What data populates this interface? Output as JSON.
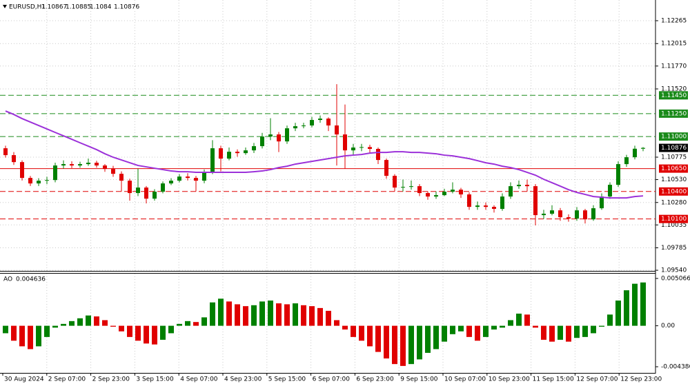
{
  "chart_data": {
    "type": "candlestick",
    "title": "EURUSD,H1",
    "candles": [
      [
        1.10872,
        1.109,
        1.1077,
        1.10797
      ],
      [
        1.10797,
        1.1083,
        1.1069,
        1.10721
      ],
      [
        1.10721,
        1.1074,
        1.1052,
        1.10548
      ],
      [
        1.10548,
        1.1057,
        1.1046,
        1.10488
      ],
      [
        1.10488,
        1.10545,
        1.1046,
        1.10518
      ],
      [
        1.10518,
        1.1056,
        1.1048,
        1.10525
      ],
      [
        1.10525,
        1.10715,
        1.105,
        1.10684
      ],
      [
        1.10684,
        1.1074,
        1.1065,
        1.10699
      ],
      [
        1.10699,
        1.1073,
        1.10655,
        1.10684
      ],
      [
        1.10684,
        1.10725,
        1.1066,
        1.10699
      ],
      [
        1.10699,
        1.1076,
        1.1068,
        1.10714
      ],
      [
        1.10714,
        1.10735,
        1.1066,
        1.10684
      ],
      [
        1.10684,
        1.107,
        1.10615,
        1.10646
      ],
      [
        1.10646,
        1.1068,
        1.1056,
        1.10593
      ],
      [
        1.10593,
        1.1062,
        1.104,
        1.10518
      ],
      [
        1.10518,
        1.1054,
        1.103,
        1.10383
      ],
      [
        1.10383,
        1.1065,
        1.1035,
        1.10443
      ],
      [
        1.10443,
        1.1046,
        1.1027,
        1.10322
      ],
      [
        1.10322,
        1.10425,
        1.103,
        1.10398
      ],
      [
        1.10398,
        1.1051,
        1.1038,
        1.10488
      ],
      [
        1.10488,
        1.10545,
        1.1047,
        1.10518
      ],
      [
        1.10518,
        1.1059,
        1.105,
        1.10563
      ],
      [
        1.10563,
        1.106,
        1.1052,
        1.10548
      ],
      [
        1.10548,
        1.1057,
        1.104,
        1.10518
      ],
      [
        1.10518,
        1.1064,
        1.1049,
        1.10608
      ],
      [
        1.10608,
        1.1096,
        1.1059,
        1.10872
      ],
      [
        1.10872,
        1.109,
        1.1062,
        1.10759
      ],
      [
        1.10759,
        1.1088,
        1.1074,
        1.10834
      ],
      [
        1.10834,
        1.1086,
        1.1078,
        1.10819
      ],
      [
        1.10819,
        1.1088,
        1.108,
        1.10849
      ],
      [
        1.10849,
        1.1093,
        1.1082,
        1.10895
      ],
      [
        1.10895,
        1.1104,
        1.1087,
        1.11
      ],
      [
        1.11,
        1.112,
        1.1096,
        1.11023
      ],
      [
        1.11023,
        1.1105,
        1.1083,
        1.10947
      ],
      [
        1.10947,
        1.1112,
        1.1092,
        1.1109
      ],
      [
        1.1109,
        1.1115,
        1.1106,
        1.11113
      ],
      [
        1.11113,
        1.1115,
        1.1109,
        1.11121
      ],
      [
        1.11121,
        1.11215,
        1.111,
        1.11181
      ],
      [
        1.11181,
        1.1123,
        1.1115,
        1.11196
      ],
      [
        1.11196,
        1.1121,
        1.1106,
        1.11121
      ],
      [
        1.11121,
        1.11572,
        1.10684,
        1.11023
      ],
      [
        1.11023,
        1.1135,
        1.1065,
        1.10849
      ],
      [
        1.10849,
        1.1092,
        1.108,
        1.1088
      ],
      [
        1.1088,
        1.1092,
        1.1084,
        1.10885
      ],
      [
        1.10885,
        1.1091,
        1.1082,
        1.10865
      ],
      [
        1.10865,
        1.1088,
        1.107,
        1.10744
      ],
      [
        1.10744,
        1.1076,
        1.1054,
        1.10571
      ],
      [
        1.10571,
        1.1059,
        1.104,
        1.10443
      ],
      [
        1.10443,
        1.1053,
        1.104,
        1.1045
      ],
      [
        1.1045,
        1.1052,
        1.1042,
        1.10458
      ],
      [
        1.10458,
        1.1048,
        1.1035,
        1.10383
      ],
      [
        1.10383,
        1.104,
        1.1031,
        1.10345
      ],
      [
        1.10345,
        1.104,
        1.1032,
        1.1036
      ],
      [
        1.1036,
        1.1043,
        1.1035,
        1.10398
      ],
      [
        1.10398,
        1.105,
        1.1038,
        1.1042
      ],
      [
        1.1042,
        1.1044,
        1.1033,
        1.10368
      ],
      [
        1.10368,
        1.1039,
        1.102,
        1.10232
      ],
      [
        1.10232,
        1.1029,
        1.102,
        1.10247
      ],
      [
        1.10247,
        1.1028,
        1.102,
        1.10232
      ],
      [
        1.10232,
        1.1025,
        1.1017,
        1.1021
      ],
      [
        1.1021,
        1.1038,
        1.1019,
        1.10345
      ],
      [
        1.10345,
        1.105,
        1.1032,
        1.10458
      ],
      [
        1.10458,
        1.1052,
        1.1043,
        1.10473
      ],
      [
        1.10473,
        1.1053,
        1.104,
        1.10458
      ],
      [
        1.10458,
        1.1048,
        1.1003,
        1.10142
      ],
      [
        1.10142,
        1.102,
        1.101,
        1.10157
      ],
      [
        1.10157,
        1.1025,
        1.1014,
        1.10194
      ],
      [
        1.10194,
        1.1022,
        1.1008,
        1.10119
      ],
      [
        1.10119,
        1.1015,
        1.1007,
        1.10104
      ],
      [
        1.10104,
        1.1023,
        1.1008,
        1.10194
      ],
      [
        1.10194,
        1.1021,
        1.1005,
        1.10096
      ],
      [
        1.10096,
        1.1025,
        1.1008,
        1.10217
      ],
      [
        1.10217,
        1.1038,
        1.102,
        1.10345
      ],
      [
        1.10345,
        1.105,
        1.1032,
        1.10473
      ],
      [
        1.10473,
        1.1073,
        1.1045,
        1.10699
      ],
      [
        1.10699,
        1.108,
        1.1067,
        1.10774
      ],
      [
        1.10774,
        1.109,
        1.1075,
        1.10867
      ],
      [
        1.10867,
        1.10885,
        1.1084,
        1.10876
      ]
    ],
    "up_color": "#008000",
    "down_color": "#e00000",
    "ma_color": "#9b30d9",
    "ma_values": [
      1.11279,
      1.11241,
      1.11196,
      1.11158,
      1.11121,
      1.11083,
      1.11045,
      1.11008,
      1.1097,
      1.10932,
      1.10895,
      1.10857,
      1.10812,
      1.10774,
      1.10744,
      1.10714,
      1.10684,
      1.10669,
      1.10654,
      1.10639,
      1.10624,
      1.10616,
      1.10616,
      1.10609,
      1.10609,
      1.10609,
      1.10609,
      1.10609,
      1.10609,
      1.10609,
      1.10616,
      1.10624,
      1.10639,
      1.10661,
      1.10676,
      1.10699,
      1.10714,
      1.10729,
      1.10744,
      1.10759,
      1.10774,
      1.10789,
      1.10797,
      1.10804,
      1.10819,
      1.10827,
      1.10827,
      1.10834,
      1.10834,
      1.10827,
      1.10827,
      1.10819,
      1.10812,
      1.10797,
      1.10789,
      1.10774,
      1.10759,
      1.10737,
      1.10714,
      1.10699,
      1.10676,
      1.10661,
      1.10639,
      1.10609,
      1.10578,
      1.10533,
      1.10496,
      1.10458,
      1.1042,
      1.1039,
      1.10368,
      1.10345,
      1.10337,
      1.1033,
      1.1033,
      1.1033,
      1.10345,
      1.10352
    ],
    "ylim": [
      1.09533,
      1.12491
    ],
    "yticks": [
      1.12265,
      1.12015,
      {
        "value": 1.1177,
        "label": "1.11770"
      },
      {
        "value": 1.1152,
        "label": "1.11520"
      },
      1.10775,
      {
        "value": 1.1053,
        "label": "1.10530"
      },
      {
        "value": 1.1028,
        "label": "1.10280"
      },
      1.10035,
      1.09785,
      {
        "value": 1.0954,
        "label": "1.09540"
      }
    ],
    "levels": [
      {
        "value": 1.1145,
        "label": "1.11450",
        "color": "#1a8a1a",
        "style": "dashed"
      },
      {
        "value": 1.1125,
        "label": "1.11250",
        "color": "#1a8a1a",
        "style": "dashed"
      },
      {
        "value": 1.11,
        "label": "1.11000",
        "color": "#1a8a1a",
        "style": "dashed"
      },
      {
        "value": 1.1065,
        "label": "1.10650",
        "color": "#e00000",
        "style": "solid"
      },
      {
        "value": 1.104,
        "label": "1.10400",
        "color": "#e00000",
        "style": "dashed"
      },
      {
        "value": 1.101,
        "label": "1.10100",
        "color": "#e00000",
        "style": "dashed"
      }
    ],
    "xticks": [
      "30 Aug 2024",
      "2 Sep 07:00",
      "2 Sep 23:00",
      "3 Sep 15:00",
      "4 Sep 07:00",
      "4 Sep 23:00",
      "5 Sep 15:00",
      "6 Sep 07:00",
      "6 Sep 23:00",
      "9 Sep 15:00",
      "10 Sep 07:00",
      "10 Sep 23:00",
      "11 Sep 15:00",
      "12 Sep 07:00",
      "12 Sep 23:00"
    ],
    "grid": true,
    "indicator": {
      "title": "AO",
      "current": 0.004636,
      "values": [
        -0.0008,
        -0.0016,
        -0.0022,
        -0.0025,
        -0.0022,
        -0.0012,
        -0.0002,
        0.0002,
        0.0005,
        0.0008,
        0.0011,
        0.001,
        0.0006,
        -0.0001,
        -0.0006,
        -0.0012,
        -0.0016,
        -0.0019,
        -0.002,
        -0.0015,
        -0.0008,
        0.0002,
        0.0005,
        0.0004,
        0.0009,
        0.0025,
        0.0029,
        0.0026,
        0.0023,
        0.0021,
        0.0022,
        0.0026,
        0.0027,
        0.0024,
        0.0023,
        0.0024,
        0.0022,
        0.0021,
        0.0019,
        0.0016,
        0.0006,
        -0.0004,
        -0.0012,
        -0.0016,
        -0.0022,
        -0.0028,
        -0.0035,
        -0.0041,
        -0.0043,
        -0.0041,
        -0.0036,
        -0.0029,
        -0.0025,
        -0.0017,
        -0.0009,
        -0.0006,
        -0.0012,
        -0.0016,
        -0.0012,
        -0.0004,
        -0.0002,
        0.0006,
        0.0013,
        0.0012,
        -0.0002,
        -0.0015,
        -0.0017,
        -0.0015,
        -0.0017,
        -0.0013,
        -0.0012,
        -0.0008,
        -0.0001,
        0.0012,
        0.0027,
        0.0038,
        0.0045,
        0.004636
      ],
      "ylim": [
        -0.004973,
        0.00558
      ],
      "yticks": [
        0.005066,
        {
          "value": 0,
          "label": "0.00"
        },
        -0.004386
      ]
    }
  }
}
